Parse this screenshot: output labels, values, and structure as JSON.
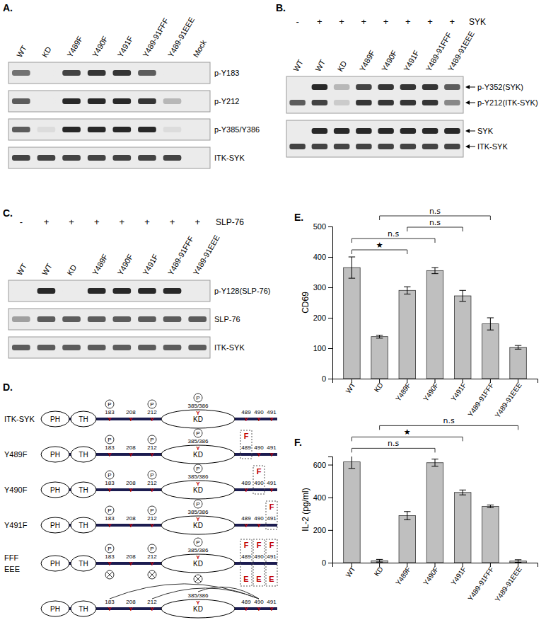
{
  "panels": [
    {
      "label": "A.",
      "lanes": [
        "WT",
        "KD",
        "Y489F",
        "Y490F",
        "Y491F",
        "Y489-91FFF",
        "Y489-91EEE",
        "Mock"
      ],
      "blots": [
        {
          "rows": [
            {
              "name": "p-Y183",
              "bands": [
                0.6,
                0,
                0.8,
                0.85,
                0.85,
                0.7,
                0,
                0
              ]
            }
          ]
        },
        {
          "rows": [
            {
              "name": "p-Y212",
              "bands": [
                0.7,
                0,
                0.9,
                0.9,
                0.9,
                0.85,
                0.3,
                0
              ]
            }
          ]
        },
        {
          "rows": [
            {
              "name": "p-Y385/Y386",
              "bands": [
                0.7,
                0.1,
                0.9,
                0.9,
                0.9,
                0.9,
                0.1,
                0
              ]
            }
          ]
        },
        {
          "rows": [
            {
              "name": "ITK-SYK",
              "bands": [
                0.8,
                0.8,
                0.8,
                0.8,
                0.8,
                0.8,
                0.8,
                0
              ]
            }
          ]
        }
      ]
    },
    {
      "label": "B.",
      "lanes": [
        "WT",
        "WT",
        "KD",
        "Y489F",
        "Y490F",
        "Y491F",
        "Y489-91FFF",
        "Y489-91EEE"
      ],
      "treatment": {
        "name": "SYK",
        "signs": [
          "-",
          "+",
          "+",
          "+",
          "+",
          "+",
          "+",
          "+"
        ]
      },
      "blots": [
        {
          "rows": [
            {
              "name": "p-Y352(SYK)",
              "bands": [
                0,
                0.9,
                0.3,
                0.8,
                0.85,
                0.85,
                0.85,
                0.7
              ]
            },
            {
              "name": "p-Y212(ITK-SYK)",
              "bands": [
                0.7,
                0.8,
                0.2,
                0.85,
                0.85,
                0.85,
                0.85,
                0.5
              ]
            }
          ]
        },
        {
          "rows": [
            {
              "name": "SYK",
              "bands": [
                0,
                0.9,
                0.9,
                0.9,
                0.9,
                0.9,
                0.9,
                0.9
              ]
            },
            {
              "name": "ITK-SYK",
              "bands": [
                0.8,
                0.8,
                0.8,
                0.8,
                0.8,
                0.8,
                0.8,
                0.8
              ]
            }
          ]
        }
      ]
    },
    {
      "label": "C.",
      "lanes": [
        "WT",
        "WT",
        "KD",
        "Y489F",
        "Y490F",
        "Y491F",
        "Y489-91FFF",
        "Y489-91EEE"
      ],
      "treatment": {
        "name": "SLP-76",
        "signs": [
          "-",
          "+",
          "+",
          "+",
          "+",
          "+",
          "+",
          "+"
        ]
      },
      "blots": [
        {
          "rows": [
            {
              "name": "p-Y128(SLP-76)",
              "bands": [
                0,
                0.9,
                0,
                0.9,
                0.9,
                0.9,
                0.9,
                0
              ]
            }
          ]
        },
        {
          "rows": [
            {
              "name": "SLP-76",
              "bands": [
                0.4,
                0.7,
                0.7,
                0.7,
                0.7,
                0.7,
                0.7,
                0.7
              ]
            }
          ]
        },
        {
          "rows": [
            {
              "name": "ITK-SYK",
              "bands": [
                0.7,
                0.7,
                0.7,
                0.7,
                0.7,
                0.7,
                0.7,
                0.7
              ]
            }
          ]
        }
      ]
    }
  ],
  "diagram": {
    "label": "D.",
    "domains": [
      "PH",
      "TH",
      "KD"
    ],
    "sites": [
      "183",
      "208",
      "212",
      "385/386",
      "489",
      "490",
      "491"
    ],
    "site_residue": "Y",
    "phospho_symbol": "P",
    "rows": [
      {
        "name": "ITK-SYK",
        "phospho": [
          0,
          2,
          3
        ]
      },
      {
        "name": "Y489F",
        "phospho": [
          0,
          2,
          3
        ],
        "mutated": [
          4
        ],
        "residue": "F"
      },
      {
        "name": "Y490F",
        "phospho": [
          0,
          2,
          3
        ],
        "mutated": [
          5
        ],
        "residue": "F"
      },
      {
        "name": "Y491F",
        "phospho": [
          0,
          2,
          3
        ],
        "mutated": [
          6
        ],
        "residue": "F"
      },
      {
        "name": "FFF",
        "phospho": [
          0,
          2,
          3
        ],
        "mutated": [
          4,
          5,
          6
        ],
        "residue": "F",
        "name_below": "EEE",
        "residue_below": "E",
        "lost_below": [
          0,
          2,
          3
        ]
      },
      {
        "arcs_from": 5,
        "arcs_to": [
          0,
          2,
          3
        ]
      }
    ]
  },
  "chart_data": [
    {
      "type": "bar",
      "title": "E.",
      "categories": [
        "WT",
        "KD",
        "Y489F",
        "Y490F",
        "Y491F",
        "Y489-91FFF",
        "Y489-91EEE"
      ],
      "values": [
        365,
        138,
        290,
        355,
        272,
        180,
        103
      ],
      "errors": [
        35,
        5,
        12,
        10,
        18,
        20,
        6
      ],
      "ylabel": "CD69",
      "ylim": [
        0,
        500
      ],
      "yticks": [
        0,
        100,
        200,
        300,
        400,
        500
      ],
      "color": "#bfbfbf",
      "annotations": [
        {
          "from": 0,
          "to": 2,
          "text": "★"
        },
        {
          "from": 0,
          "to": 3,
          "text": "n.s"
        },
        {
          "from": 2,
          "to": 4,
          "text": "n.s"
        },
        {
          "from": 1,
          "to": 5,
          "text": "n.s"
        }
      ]
    },
    {
      "type": "bar",
      "title": "F.",
      "categories": [
        "WT",
        "KD",
        "Y489F",
        "Y490F",
        "Y491F",
        "Y489-91FFF",
        "Y489-91EEE"
      ],
      "values": [
        617,
        12,
        288,
        612,
        430,
        345,
        10
      ],
      "errors": [
        40,
        8,
        25,
        22,
        15,
        8,
        8
      ],
      "ylabel": "IL-2 (pg/ml)",
      "ylim": [
        0,
        650
      ],
      "yticks": [
        0,
        200,
        400,
        600
      ],
      "color": "#bfbfbf",
      "annotations": [
        {
          "from": 0,
          "to": 3,
          "text": "n.s"
        },
        {
          "from": 0,
          "to": 4,
          "text": "★"
        },
        {
          "from": 1,
          "to": 6,
          "text": "n.s"
        }
      ]
    }
  ]
}
